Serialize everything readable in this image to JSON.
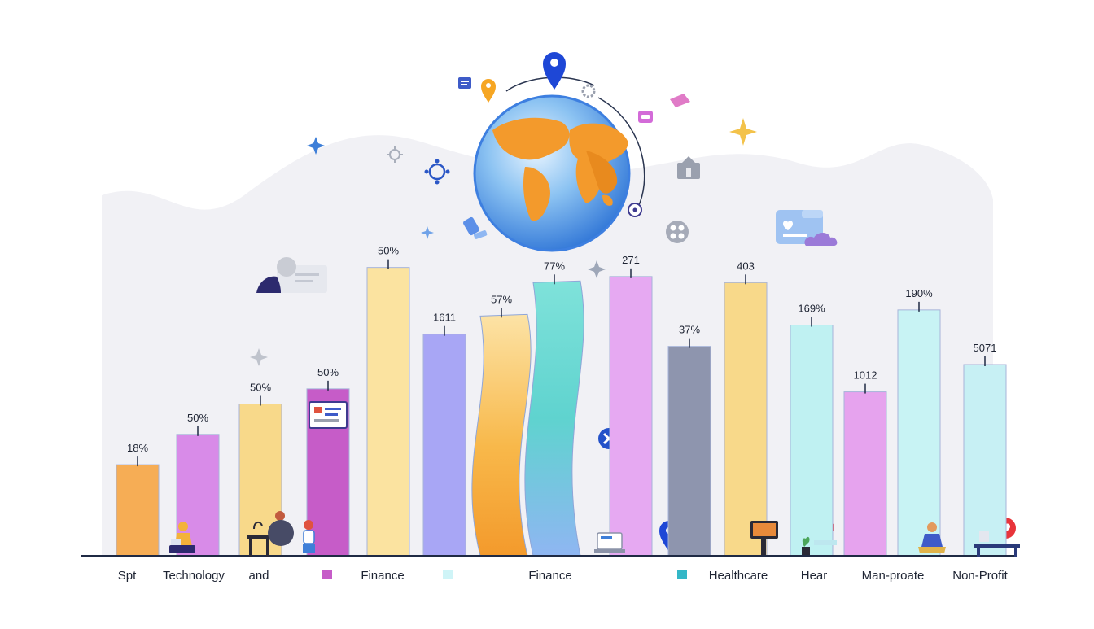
{
  "chart_data": {
    "type": "bar",
    "title": "",
    "xlabel": "",
    "ylabel": "",
    "ylim": [
      0,
      100
    ],
    "grid": false,
    "bars": [
      {
        "label": "18%",
        "value": 30,
        "color": "#F6AD55"
      },
      {
        "label": "50%",
        "value": 40,
        "color": "#D88BE8"
      },
      {
        "label": "50%",
        "value": 50,
        "color": "#F8D98A"
      },
      {
        "label": "50%",
        "value": 55,
        "color": "#C65CC8"
      },
      {
        "label": "50%",
        "value": 95,
        "color": "#FBE3A0"
      },
      {
        "label": "1611",
        "value": 73,
        "color": "#A8A6F5"
      },
      {
        "label": "57%",
        "value": 79,
        "color": "#F8B84A"
      },
      {
        "label": "77%",
        "value": 90,
        "color": "#5FD3CF"
      },
      {
        "label": "271",
        "value": 92,
        "color": "#E6A9F2"
      },
      {
        "label": "37%",
        "value": 69,
        "color": "#8E95AE"
      },
      {
        "label": "403",
        "value": 90,
        "color": "#F8D98A"
      },
      {
        "label": "169%",
        "value": 76,
        "color": "#BFF1F2"
      },
      {
        "label": "1012",
        "value": 54,
        "color": "#E6A3EE"
      },
      {
        "label": "190%",
        "value": 81,
        "color": "#C8F3F4"
      },
      {
        "label": "5071",
        "value": 63,
        "color": "#C7F0F4"
      }
    ],
    "categories": [
      {
        "label": "Spt"
      },
      {
        "label": "Technology"
      },
      {
        "label": "and"
      },
      {
        "label": "",
        "swatch": "#C65CC8"
      },
      {
        "label": "Finance"
      },
      {
        "label": "",
        "swatch": "#CFF4F7"
      },
      {
        "label": "Finance"
      },
      {
        "label": "",
        "swatch": "#34B7C7"
      },
      {
        "label": "Healthcare"
      },
      {
        "label": "Hear"
      },
      {
        "label": "Man-proate"
      },
      {
        "label": "Non-Profit"
      }
    ]
  },
  "colors": {
    "axis": "#1F2A44",
    "label": "#1E2433",
    "backdrop": "#F1F1F5",
    "globe_ocean": "#4A9BE6",
    "globe_land": "#F39A2C",
    "pin": "#1E47D6"
  },
  "decor": {
    "globe": "globe-icon",
    "pin": "map-pin-icon",
    "sparkle": "sparkle-icon",
    "heart": "heart-icon",
    "chat": "chat-bubble-icon"
  }
}
